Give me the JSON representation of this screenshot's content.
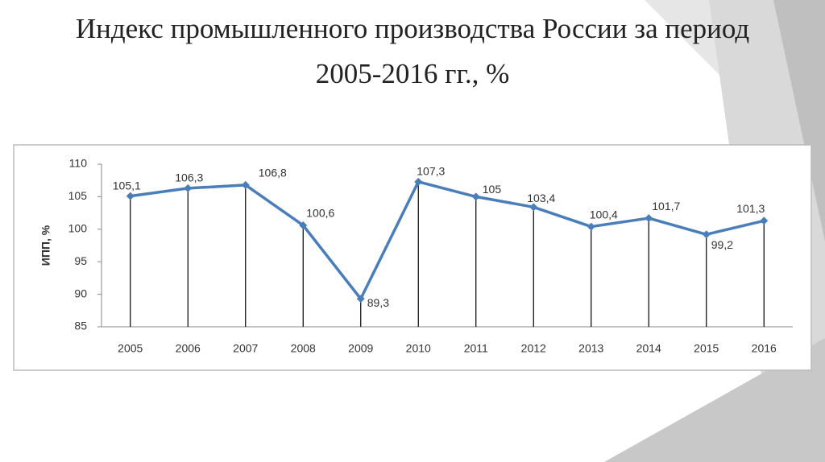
{
  "chart_data": {
    "type": "line",
    "title": "Индекс промышленного производства России за период 2005-2016 гг., %",
    "y_label": "ИПП, %",
    "categories": [
      "2005",
      "2006",
      "2007",
      "2008",
      "2009",
      "2010",
      "2011",
      "2012",
      "2013",
      "2014",
      "2015",
      "2016"
    ],
    "series": [
      {
        "name": "ИПП",
        "color": "#4a7ebb",
        "values": [
          105.1,
          106.3,
          106.8,
          100.6,
          89.3,
          107.3,
          105,
          103.4,
          100.4,
          101.7,
          99.2,
          101.3
        ],
        "value_labels": [
          "105,1",
          "106,3",
          "106,8",
          "100,6",
          "89,3",
          "107,3",
          "105",
          "103,4",
          "100,4",
          "101,7",
          "99,2",
          "101,3"
        ]
      }
    ],
    "ylim": [
      85,
      110
    ],
    "yticks": [
      85,
      90,
      95,
      100,
      105,
      110
    ],
    "grid": false
  }
}
